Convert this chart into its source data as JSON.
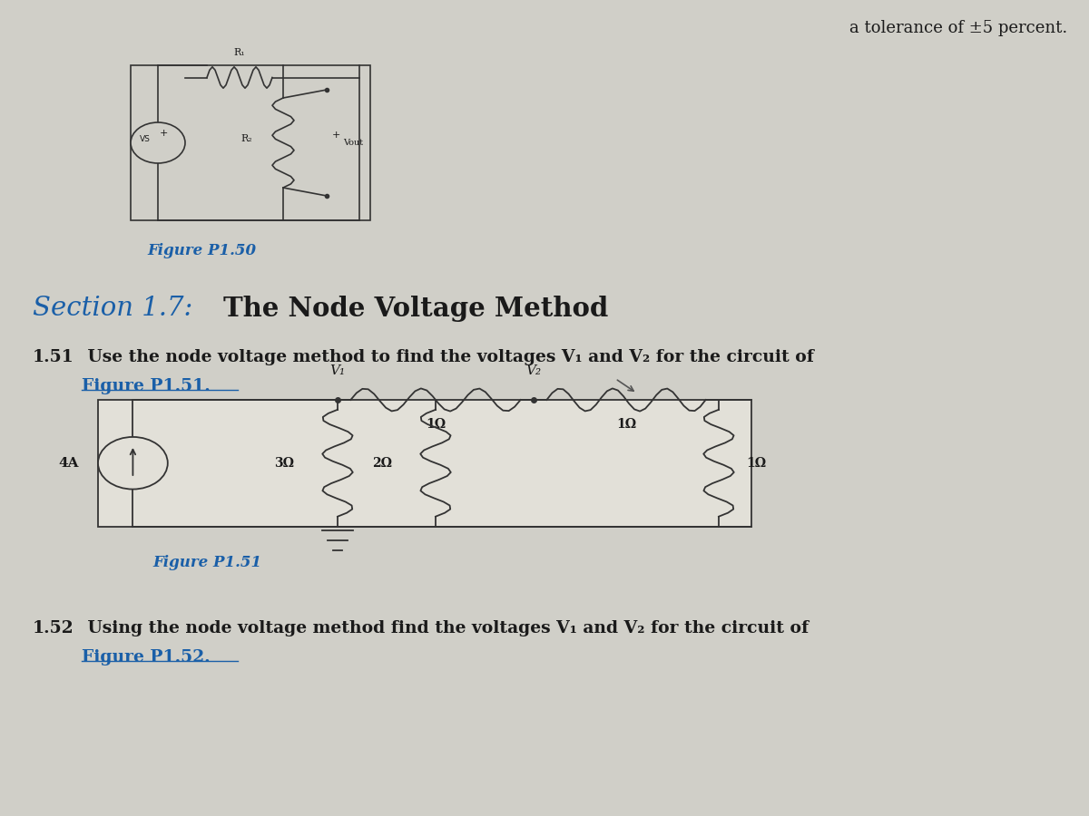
{
  "bg_color": "#d0cfc8",
  "top_text": "a tolerance of ±5 percent.",
  "figure_p150_label": "Figure P1.50",
  "section_title_prefix": "Section 1.7: ",
  "section_title_main": "The Node Voltage Method",
  "prob151_bold": "1.51",
  "prob151_text": " Use the node voltage method to find the voltages V₁ and V₂ for the circuit of",
  "prob151_link": "Figure P1.51.",
  "figure_p151_label": "Figure P1.51",
  "prob152_bold": "1.52",
  "prob152_text": " Using the node voltage method find the voltages V₁ and V₂ for the circuit of",
  "prob152_link": "Figure P1.52.",
  "text_color": "#1a1a1a",
  "link_color": "#1a5fa8"
}
